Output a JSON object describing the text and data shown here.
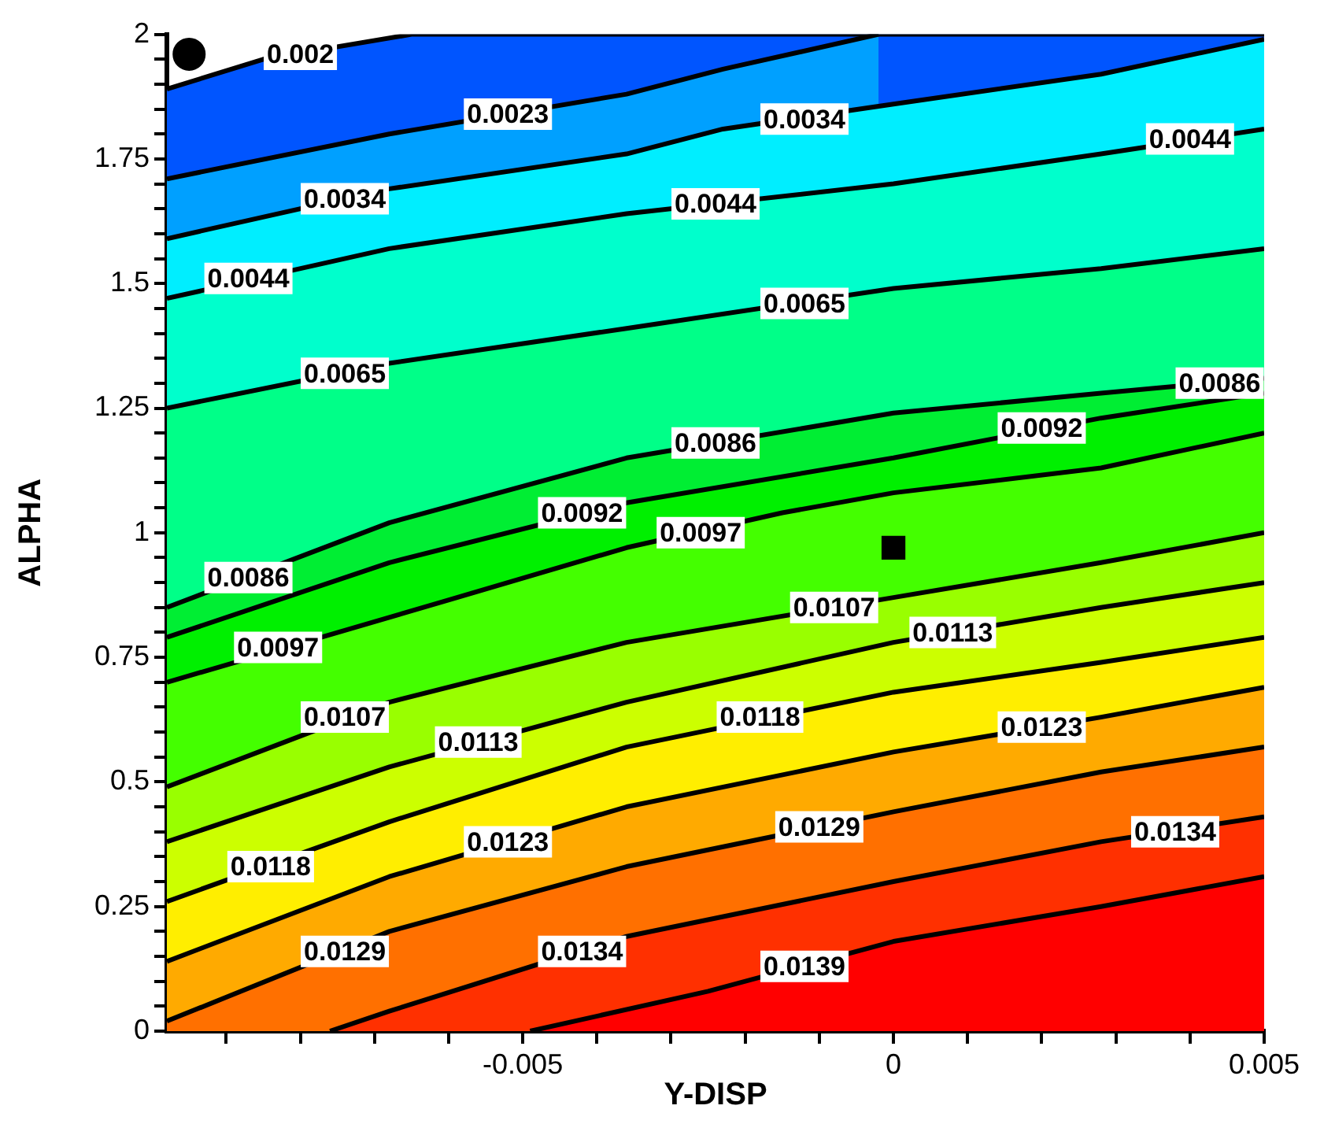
{
  "chart_data": {
    "type": "area",
    "xlabel": "Y-DISP",
    "ylabel": "ALPHA",
    "xlim": [
      -0.0098,
      0.005
    ],
    "ylim": [
      0,
      2
    ],
    "xticks": [
      {
        "value": -0.009,
        "label": null
      },
      {
        "value": -0.008,
        "label": null
      },
      {
        "value": -0.007,
        "label": null
      },
      {
        "value": -0.006,
        "label": null
      },
      -0.005,
      {
        "value": -0.004,
        "label": null
      },
      {
        "value": -0.003,
        "label": null
      },
      {
        "value": -0.002,
        "label": null
      },
      {
        "value": -0.001,
        "label": null
      },
      0,
      {
        "value": 0.001,
        "label": null
      },
      {
        "value": 0.002,
        "label": null
      },
      {
        "value": 0.003,
        "label": null
      },
      {
        "value": 0.004,
        "label": null
      },
      0.005
    ],
    "yticks": [
      0,
      {
        "value": 0.05,
        "label": null
      },
      {
        "value": 0.1,
        "label": null
      },
      {
        "value": 0.15,
        "label": null
      },
      {
        "value": 0.2,
        "label": null
      },
      0.25,
      {
        "value": 0.3,
        "label": null
      },
      {
        "value": 0.35,
        "label": null
      },
      {
        "value": 0.4,
        "label": null
      },
      {
        "value": 0.45,
        "label": null
      },
      0.5,
      {
        "value": 0.55,
        "label": null
      },
      {
        "value": 0.6,
        "label": null
      },
      {
        "value": 0.65,
        "label": null
      },
      {
        "value": 0.7,
        "label": null
      },
      0.75,
      {
        "value": 0.8,
        "label": null
      },
      {
        "value": 0.85,
        "label": null
      },
      {
        "value": 0.9,
        "label": null
      },
      {
        "value": 0.95,
        "label": null
      },
      1,
      {
        "value": 1.05,
        "label": null
      },
      {
        "value": 1.1,
        "label": null
      },
      {
        "value": 1.15,
        "label": null
      },
      {
        "value": 1.2,
        "label": null
      },
      1.25,
      {
        "value": 1.3,
        "label": null
      },
      {
        "value": 1.35,
        "label": null
      },
      {
        "value": 1.4,
        "label": null
      },
      {
        "value": 1.45,
        "label": null
      },
      1.5,
      {
        "value": 1.55,
        "label": null
      },
      {
        "value": 1.6,
        "label": null
      },
      {
        "value": 1.65,
        "label": null
      },
      {
        "value": 1.7,
        "label": null
      },
      1.75,
      {
        "value": 1.8,
        "label": null
      },
      {
        "value": 1.85,
        "label": null
      },
      {
        "value": 1.9,
        "label": null
      },
      {
        "value": 1.95,
        "label": null
      },
      2
    ],
    "series": [
      {
        "type": "area",
        "color": "#0055ff",
        "x": [
          -0.0098,
          -0.0085,
          -0.0065,
          0.005
        ],
        "values": [
          1.89,
          1.95,
          2.0,
          2.0
        ]
      },
      {
        "type": "area",
        "color": "#00a0ff",
        "x": [
          -0.0098,
          -0.0068,
          -0.0036,
          -0.0023,
          -0.0002
        ],
        "values": [
          1.71,
          1.8,
          1.88,
          1.93,
          2.0
        ]
      },
      {
        "type": "area",
        "color": "#00eeff",
        "x": [
          -0.0098,
          -0.0068,
          -0.0036,
          -0.0023,
          0,
          0.0028,
          0.005
        ],
        "values": [
          1.59,
          1.69,
          1.76,
          1.81,
          1.86,
          1.92,
          1.99
        ]
      },
      {
        "type": "area",
        "color": "#00ffcc",
        "x": [
          -0.0098,
          -0.0068,
          -0.0036,
          0,
          0.0028,
          0.005
        ],
        "values": [
          1.47,
          1.57,
          1.64,
          1.7,
          1.76,
          1.81
        ]
      },
      {
        "type": "area",
        "color": "#00ff88",
        "x": [
          -0.0098,
          -0.0068,
          -0.0036,
          0,
          0.0028,
          0.005
        ],
        "values": [
          1.25,
          1.34,
          1.41,
          1.49,
          1.53,
          1.57
        ]
      },
      {
        "type": "area",
        "color": "#00ee33",
        "x": [
          -0.0098,
          -0.0068,
          -0.0036,
          0,
          0.0028,
          0.005
        ],
        "values": [
          0.85,
          1.02,
          1.15,
          1.24,
          1.28,
          1.31
        ]
      },
      {
        "type": "area",
        "color": "#00f000",
        "x": [
          -0.0098,
          -0.0068,
          -0.0036,
          0,
          0.0028,
          0.005
        ],
        "values": [
          0.79,
          0.94,
          1.06,
          1.15,
          1.23,
          1.28
        ]
      },
      {
        "type": "area",
        "color": "#44ff00",
        "x": [
          -0.0098,
          -0.0068,
          -0.0036,
          -0.0015,
          0,
          0.0028,
          0.005
        ],
        "values": [
          0.7,
          0.83,
          0.97,
          1.04,
          1.08,
          1.13,
          1.2
        ]
      },
      {
        "type": "area",
        "color": "#99ff00",
        "x": [
          -0.0098,
          -0.0068,
          -0.0036,
          0,
          0.0028,
          0.005
        ],
        "values": [
          0.49,
          0.66,
          0.78,
          0.87,
          0.94,
          1.0
        ]
      },
      {
        "type": "area",
        "color": "#ccff00",
        "x": [
          -0.0098,
          -0.0068,
          -0.0036,
          0,
          0.0028,
          0.005
        ],
        "values": [
          0.38,
          0.53,
          0.66,
          0.78,
          0.85,
          0.9
        ]
      },
      {
        "type": "area",
        "color": "#ffee00",
        "x": [
          -0.0098,
          -0.0068,
          -0.0036,
          0,
          0.0028,
          0.005
        ],
        "values": [
          0.26,
          0.42,
          0.57,
          0.68,
          0.74,
          0.79
        ]
      },
      {
        "type": "area",
        "color": "#ffaa00",
        "x": [
          -0.0098,
          -0.0068,
          -0.0036,
          0,
          0.0028,
          0.005
        ],
        "values": [
          0.14,
          0.31,
          0.45,
          0.56,
          0.63,
          0.69
        ]
      },
      {
        "type": "area",
        "color": "#ff7000",
        "x": [
          -0.0098,
          -0.0068,
          -0.0036,
          0,
          0.0028,
          0.005
        ],
        "values": [
          0.02,
          0.2,
          0.33,
          0.44,
          0.52,
          0.57
        ]
      },
      {
        "type": "area",
        "color": "#ff3000",
        "x": [
          -0.0076,
          -0.0068,
          -0.0036,
          0,
          0.0028,
          0.005
        ],
        "values": [
          0,
          0.04,
          0.19,
          0.3,
          0.38,
          0.43
        ]
      },
      {
        "type": "area",
        "color": "#ff0000",
        "x": [
          -0.0049,
          -0.0025,
          0,
          0.0028,
          0.005
        ],
        "values": [
          0,
          0.08,
          0.18,
          0.25,
          0.31
        ]
      },
      {
        "type": "scatter",
        "marker": "circle",
        "color": "#000000",
        "x": [
          -0.0095
        ],
        "values": [
          1.96
        ]
      },
      {
        "type": "scatter",
        "marker": "square",
        "color": "#000000",
        "x": [
          0
        ],
        "values": [
          0.97
        ]
      }
    ],
    "annotations": [
      {
        "text": "0.002",
        "x": -0.008,
        "y": 1.96
      },
      {
        "text": "0.0023",
        "x": -0.0052,
        "y": 1.84
      },
      {
        "text": "0.0034",
        "x": -0.0074,
        "y": 1.67
      },
      {
        "text": "0.0034",
        "x": -0.0012,
        "y": 1.83
      },
      {
        "text": "0.0044",
        "x": -0.0087,
        "y": 1.51
      },
      {
        "text": "0.0044",
        "x": -0.0024,
        "y": 1.66
      },
      {
        "text": "0.0044",
        "x": 0.004,
        "y": 1.79
      },
      {
        "text": "0.0065",
        "x": -0.0074,
        "y": 1.32
      },
      {
        "text": "0.0065",
        "x": -0.0012,
        "y": 1.46
      },
      {
        "text": "0.0086",
        "x": -0.0087,
        "y": 0.91
      },
      {
        "text": "0.0086",
        "x": -0.0024,
        "y": 1.18
      },
      {
        "text": "0.0086",
        "x": 0.0044,
        "y": 1.3
      },
      {
        "text": "0.0092",
        "x": -0.0042,
        "y": 1.04
      },
      {
        "text": "0.0092",
        "x": 0.002,
        "y": 1.21
      },
      {
        "text": "0.0097",
        "x": -0.0083,
        "y": 0.77
      },
      {
        "text": "0.0097",
        "x": -0.0026,
        "y": 1.0
      },
      {
        "text": "0.0107",
        "x": -0.0074,
        "y": 0.63
      },
      {
        "text": "0.0107",
        "x": -0.0008,
        "y": 0.85
      },
      {
        "text": "0.0113",
        "x": -0.0056,
        "y": 0.58
      },
      {
        "text": "0.0113",
        "x": 0.0008,
        "y": 0.8
      },
      {
        "text": "0.0118",
        "x": -0.0084,
        "y": 0.33
      },
      {
        "text": "0.0118",
        "x": -0.0018,
        "y": 0.63
      },
      {
        "text": "0.0123",
        "x": -0.0052,
        "y": 0.38
      },
      {
        "text": "0.0123",
        "x": 0.002,
        "y": 0.61
      },
      {
        "text": "0.0129",
        "x": -0.0074,
        "y": 0.16
      },
      {
        "text": "0.0129",
        "x": -0.001,
        "y": 0.41
      },
      {
        "text": "0.0134",
        "x": -0.0042,
        "y": 0.16
      },
      {
        "text": "0.0134",
        "x": 0.0038,
        "y": 0.4
      },
      {
        "text": "0.0139",
        "x": -0.0012,
        "y": 0.13
      }
    ]
  }
}
